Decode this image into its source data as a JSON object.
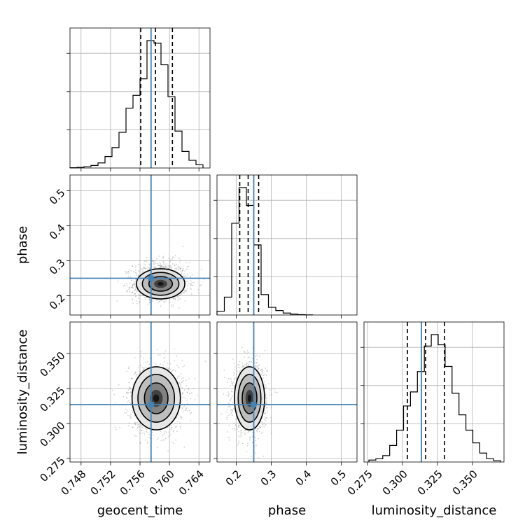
{
  "chart_data": {
    "type": "corner",
    "parameters": [
      {
        "name": "geocent_time",
        "label": "geocent_time",
        "range": [
          0.7465,
          0.7655
        ],
        "ticks": [
          0.748,
          0.752,
          0.756,
          0.76,
          0.764
        ],
        "tick_labels": [
          "0.748",
          "0.752",
          "0.756",
          "0.760",
          "0.764"
        ],
        "truth": 0.7575,
        "quantiles": [
          0.7561,
          0.7581,
          0.7604
        ],
        "hist_edges_start": 0.7465,
        "hist_bin_width": 0.00095,
        "hist_counts": [
          0.2,
          0.5,
          1,
          2,
          4,
          9,
          16,
          28,
          47,
          57,
          70,
          100,
          98,
          81,
          56,
          29,
          13,
          6,
          2.5
        ]
      },
      {
        "name": "phase",
        "label": "phase",
        "range": [
          0.145,
          0.545
        ],
        "ticks": [
          0.2,
          0.3,
          0.4,
          0.5
        ],
        "tick_labels": [
          "0.2",
          "0.3",
          "0.4",
          "0.5"
        ],
        "truth": 0.25,
        "quantiles": [
          0.21,
          0.234,
          0.264
        ],
        "hist_edges_start": 0.145,
        "hist_bin_width": 0.021,
        "hist_counts": [
          3,
          14,
          72,
          100,
          86,
          55,
          16,
          6,
          3.5,
          1.5,
          0.7,
          0.3,
          0.1
        ]
      },
      {
        "name": "luminosity_distance",
        "label": "luminosity_distance",
        "range": [
          0.2725,
          0.3725
        ],
        "ticks": [
          0.275,
          0.3,
          0.325,
          0.35
        ],
        "tick_labels": [
          "0.275",
          "0.300",
          "0.325",
          "0.350"
        ],
        "truth": 0.3135,
        "quantiles": [
          0.3035,
          0.3165,
          0.33
        ],
        "hist_edges_start": 0.276,
        "hist_bin_width": 0.00495,
        "hist_counts": [
          1.5,
          2.5,
          5,
          13,
          25,
          44,
          55,
          71,
          91,
          100,
          92,
          75,
          54,
          37,
          25,
          15,
          7,
          2.5,
          1
        ]
      }
    ],
    "pairs": [
      {
        "x": "geocent_time",
        "y": "phase",
        "center": [
          0.7588,
          0.234
        ],
        "spread": [
          0.0016,
          0.021
        ]
      },
      {
        "x": "geocent_time",
        "y": "luminosity_distance",
        "center": [
          0.7582,
          0.318
        ],
        "spread": [
          0.0016,
          0.011
        ]
      },
      {
        "x": "phase",
        "y": "luminosity_distance",
        "center": [
          0.238,
          0.318
        ],
        "spread": [
          0.021,
          0.011
        ]
      }
    ],
    "truth_color": "#4682b4",
    "quantile_color": "#000000",
    "hist_color": "#000000",
    "grid": true
  }
}
